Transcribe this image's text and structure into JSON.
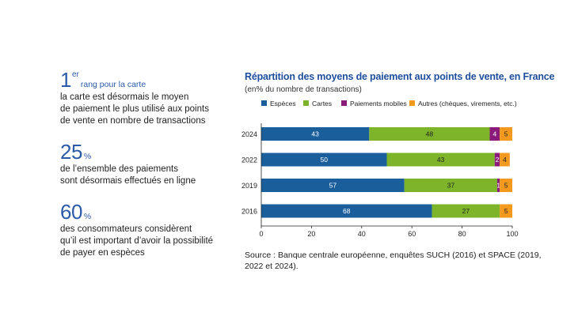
{
  "kpis": [
    {
      "big": "1",
      "sup": "er",
      "sub": "rang pour la carte",
      "lines": [
        "la carte est désormais le moyen",
        "de paiement le plus utilisé aux points",
        "de vente en nombre de transactions"
      ]
    },
    {
      "big": "25",
      "sup": "",
      "sub": "%",
      "lines": [
        "de l’ensemble des paiements",
        "sont désormais effectués en ligne"
      ]
    },
    {
      "big": "60",
      "sup": "",
      "sub": "%",
      "lines": [
        "des consommateurs considèrent",
        "qu’il est important d’avoir la possibilité",
        "de payer en espèces"
      ]
    }
  ],
  "colors": {
    "kpi": "#2a5aa8",
    "especes": "#1a5e9c",
    "cartes": "#7db42a",
    "mobiles": "#8a1b7a",
    "autres": "#f39a1e"
  },
  "chart_data": {
    "type": "bar",
    "orientation": "horizontal",
    "stacked": true,
    "title": "Répartition des moyens de paiement aux points de vente, en France",
    "subtitle": "(en% du nombre de transactions)",
    "categories": [
      "2024",
      "2022",
      "2019",
      "2016"
    ],
    "series": [
      {
        "name": "Espèces",
        "color": "#1a5e9c",
        "values": [
          43,
          50,
          57,
          68
        ]
      },
      {
        "name": "Cartes",
        "color": "#7db42a",
        "values": [
          48,
          43,
          37,
          27
        ]
      },
      {
        "name": "Paiements mobiles",
        "color": "#8a1b7a",
        "values": [
          4,
          2,
          1,
          0
        ]
      },
      {
        "name": "Autres (chèques, virements, etc.)",
        "color": "#f39a1e",
        "values": [
          5,
          4,
          5,
          5
        ]
      }
    ],
    "data_labels": [
      [
        "43",
        "48",
        "4",
        "5"
      ],
      [
        "50",
        "43",
        "2",
        "4"
      ],
      [
        "57",
        "37",
        "1",
        "5"
      ],
      [
        "68",
        "27",
        "",
        "5"
      ]
    ],
    "xlim": [
      0,
      100
    ],
    "xticks": [
      "0",
      "20",
      "40",
      "60",
      "80",
      "100"
    ],
    "legend_position": "top",
    "grid": false
  },
  "source": "Source : Banque centrale européenne, enquêtes SUCH (2016) et SPACE (2019, 2022 et 2024)."
}
